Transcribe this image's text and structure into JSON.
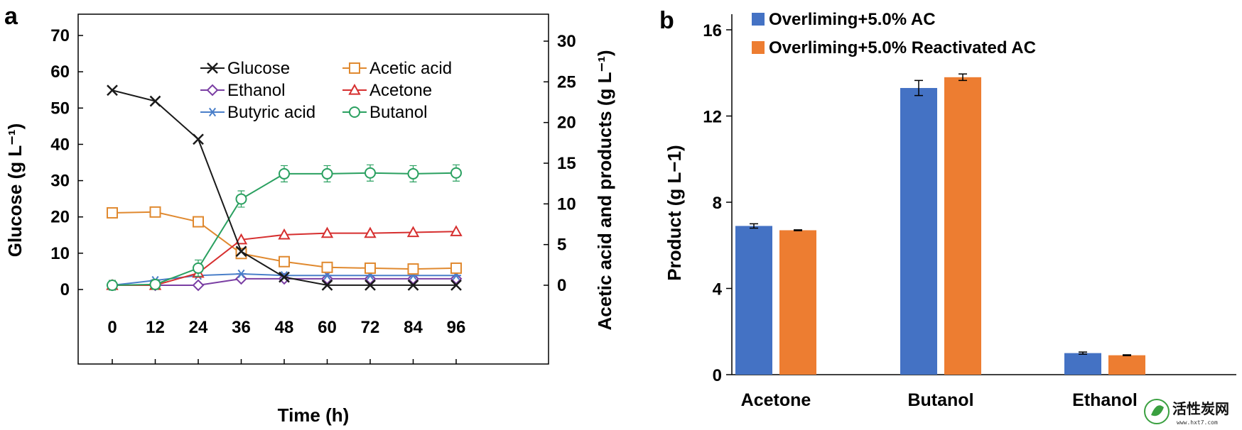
{
  "chart_data": [
    {
      "panel": "a",
      "type": "line",
      "x": [
        0,
        12,
        24,
        36,
        48,
        60,
        72,
        84,
        96
      ],
      "x_ticks": [
        "0",
        "12",
        "24",
        "36",
        "48",
        "60",
        "72",
        "84",
        "96"
      ],
      "xlabel": "Time (h)",
      "ylabel_left": "Glucose (g L⁻¹)",
      "ylabel_right": "Acetic acid and  products (g L⁻¹)",
      "ylim_left": [
        0,
        70
      ],
      "ylim_right": [
        0,
        30
      ],
      "y_ticks_left": [
        "0",
        "10",
        "20",
        "30",
        "40",
        "50",
        "60",
        "70"
      ],
      "y_ticks_right": [
        "0",
        "5",
        "10",
        "15",
        "20",
        "25",
        "30"
      ],
      "legend_position": "top-center",
      "series": [
        {
          "name": "Glucose",
          "axis": "left",
          "marker": "x",
          "color": "#1a1a1a",
          "values": [
            54.9,
            51.9,
            41.4,
            10.5,
            3.4,
            1.2,
            1.2,
            1.2,
            1.2
          ]
        },
        {
          "name": "Acetic acid",
          "axis": "right",
          "marker": "square",
          "color": "#e0892f",
          "values": [
            8.9,
            9.0,
            7.8,
            3.9,
            2.9,
            2.2,
            2.1,
            2.0,
            2.1
          ]
        },
        {
          "name": "Ethanol",
          "axis": "right",
          "marker": "diamond",
          "color": "#7a3ea3",
          "values": [
            0.0,
            0.0,
            0.0,
            0.8,
            0.8,
            0.8,
            0.8,
            0.8,
            0.8
          ]
        },
        {
          "name": "Acetone",
          "axis": "right",
          "marker": "triangle",
          "color": "#d62f2f",
          "values": [
            0.0,
            0.0,
            1.5,
            5.6,
            6.2,
            6.4,
            6.4,
            6.5,
            6.6
          ]
        },
        {
          "name": "Butyric acid",
          "axis": "right",
          "marker": "asterisk",
          "color": "#4a7fc9",
          "values": [
            0.0,
            0.6,
            1.2,
            1.4,
            1.2,
            1.2,
            1.2,
            1.2,
            1.2
          ]
        },
        {
          "name": "Butanol",
          "axis": "right",
          "marker": "circle",
          "color": "#2aa060",
          "values": [
            0.0,
            0.1,
            2.1,
            10.6,
            13.7,
            13.7,
            13.8,
            13.7,
            13.8
          ],
          "errors": [
            0.6,
            0.6,
            1.0,
            1.0,
            1.0,
            1.0,
            1.0,
            1.0,
            1.0
          ]
        }
      ]
    },
    {
      "panel": "b",
      "type": "bar",
      "categories": [
        "Acetone",
        "Butanol",
        "Ethanol"
      ],
      "ylabel": "Product (g L−1)",
      "ylim": [
        0,
        17
      ],
      "y_ticks": [
        "0",
        "4",
        "8",
        "12",
        "16"
      ],
      "legend_position": "top",
      "series": [
        {
          "name": "Overliming+5.0% AC",
          "color": "#4472c4",
          "values": [
            6.9,
            13.3,
            1.0
          ],
          "errors": [
            0.1,
            0.35,
            0.05
          ]
        },
        {
          "name": "Overliming+5.0% Reactivated AC",
          "color": "#ed7d31",
          "values": [
            6.7,
            13.8,
            0.9
          ],
          "errors": [
            0.02,
            0.15,
            0.02
          ]
        }
      ]
    }
  ],
  "panels": {
    "a": "a",
    "b": "b"
  },
  "watermark": {
    "title": "活性炭网",
    "subtitle": "www.hxt7.com"
  }
}
